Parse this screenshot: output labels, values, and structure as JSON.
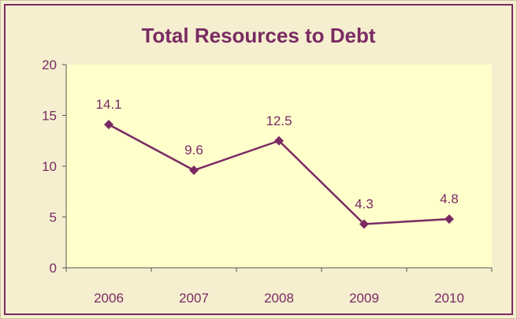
{
  "chart_data": {
    "type": "line",
    "title": "Total Resources to Debt",
    "categories": [
      "2006",
      "2007",
      "2008",
      "2009",
      "2010"
    ],
    "series": [
      {
        "values": [
          14.1,
          9.6,
          12.5,
          4.3,
          4.8
        ]
      }
    ],
    "data_labels": [
      "14.1",
      "9.6",
      "12.5",
      "4.3",
      "4.8"
    ],
    "y_ticks": [
      "0",
      "5",
      "10",
      "15",
      "20"
    ],
    "ylim": [
      0,
      20
    ],
    "grid": false,
    "legend": "none",
    "colors": {
      "line": "#7a2a63",
      "plot_bg": "#ffffcc",
      "frame_bg": "#f5efcf",
      "text": "#7a2a63"
    }
  }
}
